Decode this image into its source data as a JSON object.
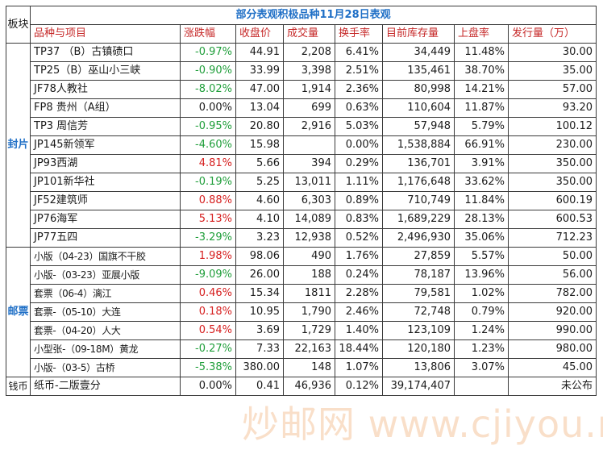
{
  "table": {
    "title": "部分表观积极品种11月28日表观",
    "corner_label": "板块",
    "headers": [
      "品种与项目",
      "涨跌幅",
      "收盘价",
      "成交量",
      "换手率",
      "目前库存量",
      "上盘率",
      "发行量（万）"
    ],
    "sections": [
      {
        "label": "封片",
        "rows": [
          {
            "name": "TP37 （B）古镇碛口",
            "change": "-0.97%",
            "close": "44.91",
            "volume": "2,208",
            "turnover": "6.41%",
            "stock": "34,449",
            "listing": "11.48%",
            "issue": "30.00"
          },
          {
            "name": "TP25（B）巫山小三峡",
            "change": "-0.90%",
            "close": "33.99",
            "volume": "3,398",
            "turnover": "2.51%",
            "stock": "135,461",
            "listing": "38.70%",
            "issue": "35.00"
          },
          {
            "name": "JF78人教社",
            "change": "-8.02%",
            "close": "47.00",
            "volume": "1,914",
            "turnover": "2.36%",
            "stock": "80,998",
            "listing": "14.21%",
            "issue": "57.00"
          },
          {
            "name": "FP8 贵州（A组）",
            "change": "0.00%",
            "close": "13.04",
            "volume": "699",
            "turnover": "0.63%",
            "stock": "110,604",
            "listing": "11.87%",
            "issue": "93.20"
          },
          {
            "name": "TP3 周信芳",
            "change": "-0.95%",
            "close": "20.80",
            "volume": "2,916",
            "turnover": "5.03%",
            "stock": "57,948",
            "listing": "5.79%",
            "issue": "100.12"
          },
          {
            "name": "JP145新领军",
            "change": "-4.60%",
            "close": "15.98",
            "volume": "",
            "turnover": "0.00%",
            "stock": "1,538,884",
            "listing": "66.91%",
            "issue": "230.00"
          },
          {
            "name": "JP93西湖",
            "change": "4.81%",
            "close": "5.66",
            "volume": "394",
            "turnover": "0.29%",
            "stock": "136,701",
            "listing": "3.91%",
            "issue": "350.00"
          },
          {
            "name": "JP101新华社",
            "change": "-0.19%",
            "close": "5.25",
            "volume": "13,011",
            "turnover": "1.11%",
            "stock": "1,176,648",
            "listing": "33.62%",
            "issue": "350.00"
          },
          {
            "name": "JF52建筑师",
            "change": "0.88%",
            "close": "4.60",
            "volume": "6,303",
            "turnover": "0.89%",
            "stock": "710,749",
            "listing": "11.84%",
            "issue": "600.19"
          },
          {
            "name": "JP76海军",
            "change": "5.13%",
            "close": "4.10",
            "volume": "14,089",
            "turnover": "0.83%",
            "stock": "1,689,229",
            "listing": "28.13%",
            "issue": "600.53"
          },
          {
            "name": "JP77五四",
            "change": "-3.29%",
            "close": "3.23",
            "volume": "12,938",
            "turnover": "0.52%",
            "stock": "2,496,930",
            "listing": "35.06%",
            "issue": "712.23"
          }
        ]
      },
      {
        "label": "邮票",
        "rows": [
          {
            "name": "小版（04-23）国旗不干胶",
            "change": "1.98%",
            "close": "98.06",
            "volume": "490",
            "turnover": "1.76%",
            "stock": "27,859",
            "listing": "5.57%",
            "issue": "50.00"
          },
          {
            "name": "小版-（03-23）亚展小版",
            "change": "-9.09%",
            "close": "26.00",
            "volume": "188",
            "turnover": "0.24%",
            "stock": "78,187",
            "listing": "13.96%",
            "issue": "56.00"
          },
          {
            "name": "套票（06-4）漓江",
            "change": "0.46%",
            "close": "15.34",
            "volume": "1811",
            "turnover": "2.28%",
            "stock": "79,581",
            "listing": "1.02%",
            "issue": "782.00"
          },
          {
            "name": "套票-（05-10）大连",
            "change": "0.18%",
            "close": "10.95",
            "volume": "1,790",
            "turnover": "2.46%",
            "stock": "72,748",
            "listing": "0.79%",
            "issue": "920.00"
          },
          {
            "name": "套票-（04-20）人大",
            "change": "0.54%",
            "close": "3.69",
            "volume": "1,729",
            "turnover": "1.40%",
            "stock": "123,109",
            "listing": "1.24%",
            "issue": "990.00"
          },
          {
            "name": "小型张-（09-18M）黄龙",
            "change": "-0.27%",
            "close": "7.33",
            "volume": "22,163",
            "turnover": "18.44%",
            "stock": "120,180",
            "listing": "1.23%",
            "issue": "980.00"
          },
          {
            "name": "小版-（03-5）古桥",
            "change": "-5.38%",
            "close": "380.00",
            "volume": "148",
            "turnover": "1.07%",
            "stock": "13,806",
            "listing": "3.07%",
            "issue": "45.00"
          }
        ]
      },
      {
        "label": "钱币",
        "rows": [
          {
            "name": "纸币-二版壹分",
            "change": "0.00%",
            "close": "0.41",
            "volume": "46,936",
            "turnover": "0.12%",
            "stock": "39,174,407",
            "listing": "",
            "issue": "未公布"
          }
        ]
      }
    ]
  },
  "colors": {
    "title": "#1f6fc6",
    "header": "#c62828",
    "rise": "#d61f1f",
    "fall": "#1f9e3a",
    "section_label": "#1f6fc6"
  },
  "watermark": "炒邮网 www.cjiyou.net"
}
